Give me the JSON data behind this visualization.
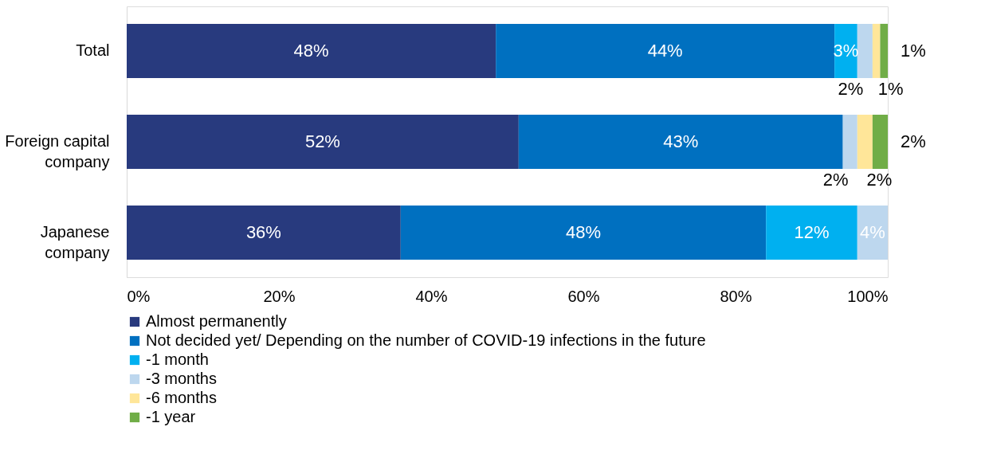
{
  "chart_data": {
    "type": "bar",
    "orientation": "horizontal",
    "stacked": true,
    "categories": [
      "Total",
      "Foreign capital company",
      "Japanese company"
    ],
    "series": [
      {
        "name": "Almost permanently",
        "color": "#283a7e",
        "values": [
          48.5,
          51.5,
          36
        ],
        "value_labels": [
          "48%",
          "52%",
          "36%"
        ]
      },
      {
        "name": "Not decided yet/ Depending on the number of  COVID-19 infections in the future",
        "color": "#0070c0",
        "values": [
          44.5,
          42.6,
          48
        ],
        "value_labels": [
          "44%",
          "43%",
          "48%"
        ]
      },
      {
        "name": "-1 month",
        "color": "#00b0f0",
        "values": [
          3,
          0,
          12
        ],
        "value_labels": [
          "3%",
          null,
          "12%"
        ]
      },
      {
        "name": "-3 months",
        "color": "#bdd7ee",
        "values": [
          2,
          1.9,
          4
        ],
        "value_labels": [
          "2%",
          "2%",
          "4%"
        ]
      },
      {
        "name": "-6 months",
        "color": "#ffe699",
        "values": [
          1,
          2,
          0
        ],
        "value_labels": [
          "1%",
          "2%",
          null
        ]
      },
      {
        "name": "-1 year",
        "color": "#70ad47",
        "values": [
          1,
          2,
          0
        ],
        "value_labels": [
          "1%",
          "2%",
          null
        ]
      }
    ],
    "xlim": [
      0,
      100
    ],
    "xticks": [
      {
        "value": 0,
        "label": "0%"
      },
      {
        "value": 20,
        "label": "20%"
      },
      {
        "value": 40,
        "label": "40%"
      },
      {
        "value": 60,
        "label": "60%"
      },
      {
        "value": 80,
        "label": "80%"
      },
      {
        "value": 100,
        "label": "100%"
      }
    ],
    "grid": false,
    "legend": "bottom"
  }
}
